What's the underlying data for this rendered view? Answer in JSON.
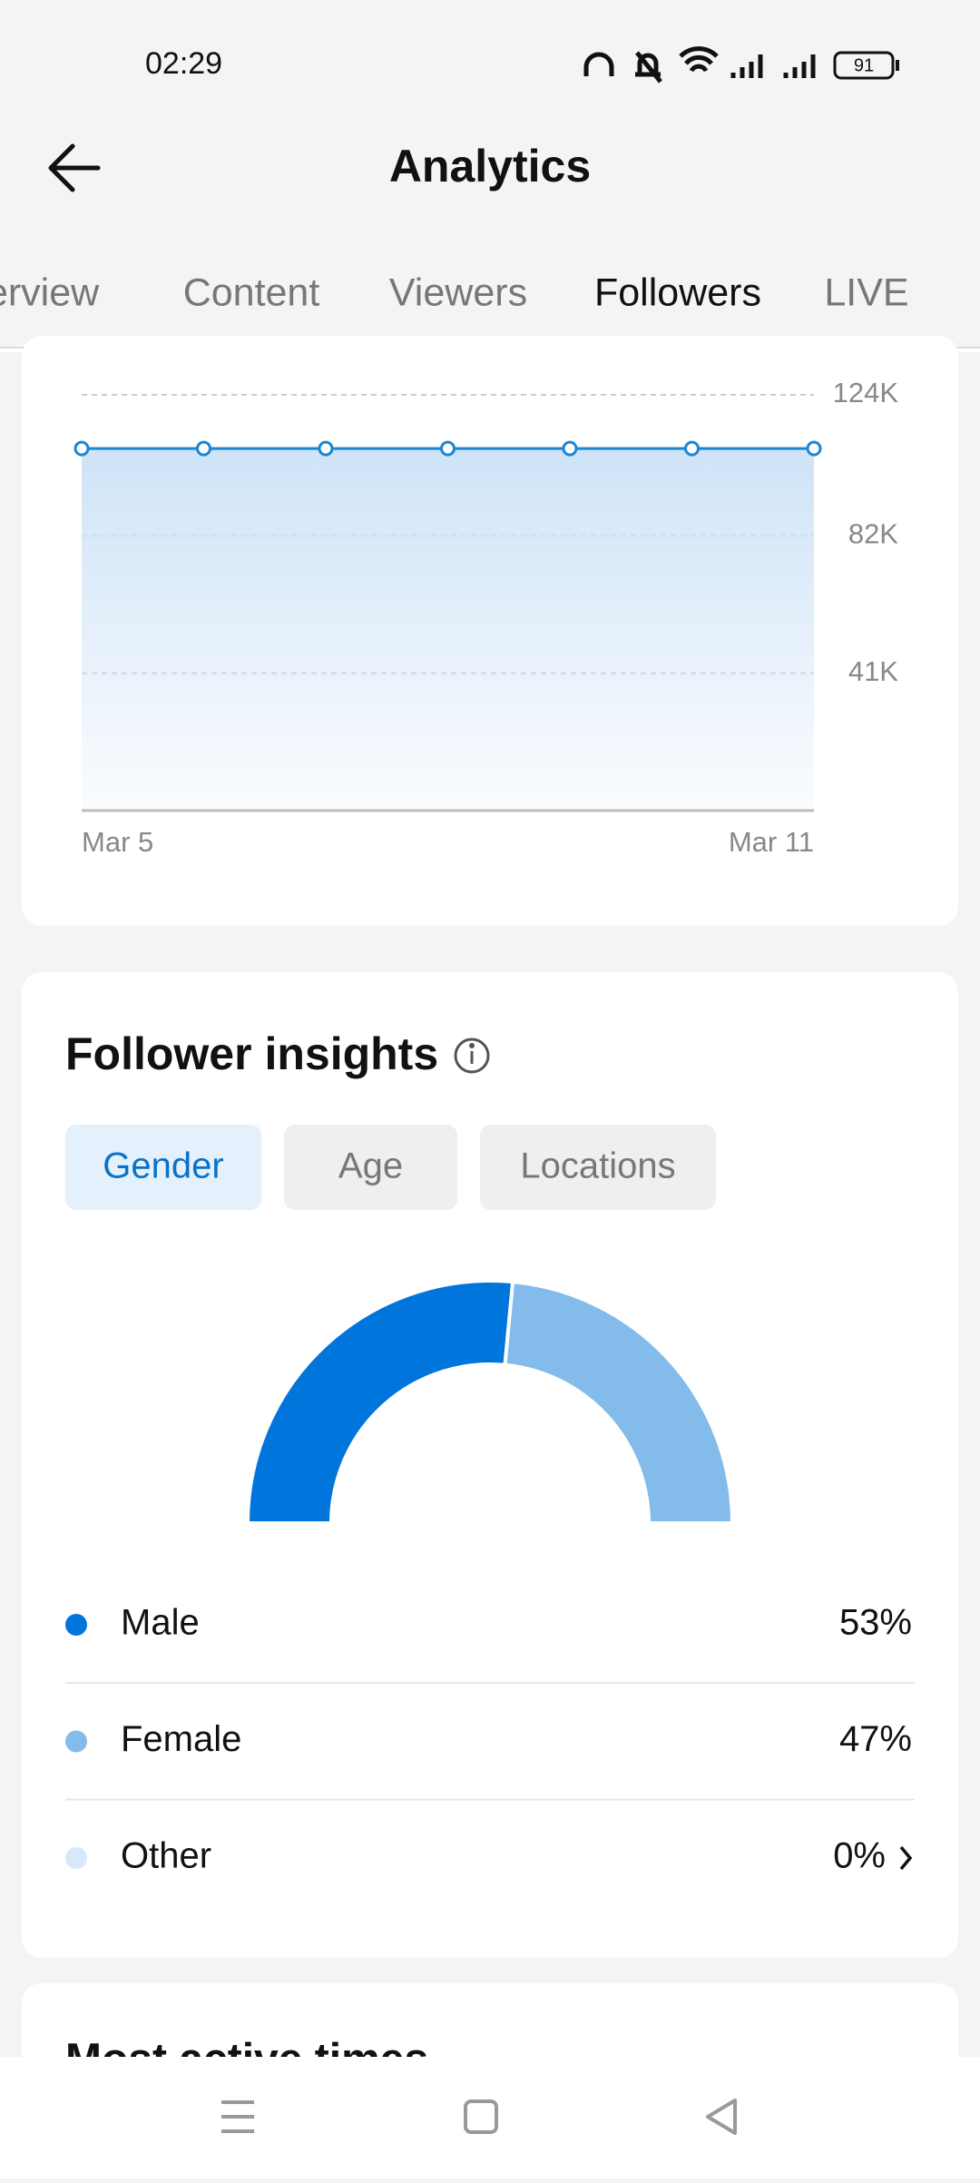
{
  "status_bar": {
    "time": "02:29",
    "battery": "91"
  },
  "header": {
    "title": "Analytics"
  },
  "tabs": {
    "items": [
      "Overview",
      "Content",
      "Viewers",
      "Followers",
      "LIVE"
    ],
    "active": "Followers"
  },
  "chart_data": [
    {
      "type": "area",
      "categories": [
        "Mar 5",
        null,
        null,
        null,
        null,
        null,
        "Mar 11"
      ],
      "values": [
        108000,
        108000,
        108000,
        108000,
        108000,
        108000,
        108000
      ],
      "color": "#1b86d4",
      "ylim": [
        0,
        124000
      ],
      "yticks": [
        {
          "value": 41000,
          "label": "41K"
        },
        {
          "value": 82000,
          "label": "82K"
        },
        {
          "value": 124000,
          "label": "124K"
        }
      ],
      "grid": true
    },
    {
      "type": "pie",
      "title": "Follower insights",
      "style": "half-donut",
      "filters": [
        "Gender",
        "Age",
        "Locations"
      ],
      "active_filter": "Gender",
      "categories": [
        "Male",
        "Female",
        "Other"
      ],
      "values": [
        53,
        47,
        0
      ],
      "value_labels": [
        "53%",
        "47%",
        "0%"
      ],
      "colors": [
        "#0075db",
        "#83bbeb",
        "#d6e8f9"
      ]
    }
  ],
  "next_card": {
    "title": "Most active times"
  }
}
